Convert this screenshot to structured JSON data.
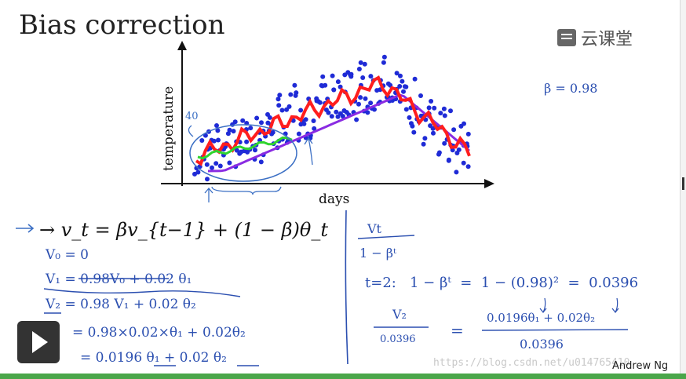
{
  "slide": {
    "title": "Bias correction",
    "logo_text": "云课堂",
    "author": "Andrew Ng",
    "watermark": "https://blog.csdn.net/u014765410",
    "play_icon": "play-icon"
  },
  "chart_data": {
    "type": "scatter",
    "xlabel": "days",
    "ylabel": "temperature",
    "annotation_40": "40",
    "series": [
      {
        "name": "",
        "kind": "scatter",
        "color": "#1f2bd6"
      },
      {
        "name": "",
        "kind": "line",
        "color": "#ff1e1e"
      },
      {
        "name": "",
        "kind": "line",
        "color": "#8a2be2"
      },
      {
        "name": "",
        "kind": "line",
        "color": "#2fd42f"
      }
    ]
  },
  "equations": {
    "main": "→ v_t = βv_{t−1} + (1 − β)θ_t",
    "lines": [
      "V₀ = 0",
      "V₁ = 0.98V₀ + 0.02 θ₁",
      "V₂ = 0.98 V₁ + 0.02 θ₂",
      "= 0.98×0.02×θ₁ + 0.02θ₂",
      "= 0.0196 θ₁ + 0.02 θ₂"
    ]
  },
  "right": {
    "beta": "β = 0.98",
    "frac_num": "Vt",
    "frac_den": "1 − βᵗ",
    "t_eq": "t=2:   1 − βᵗ  =  1 − (0.98)²  =  0.0396",
    "v2_num": "V₂",
    "v2_den": "0.0396",
    "eq_sign": "=",
    "result_num": "0.0196θ₁ + 0.02θ₂",
    "result_den": "0.0396"
  }
}
